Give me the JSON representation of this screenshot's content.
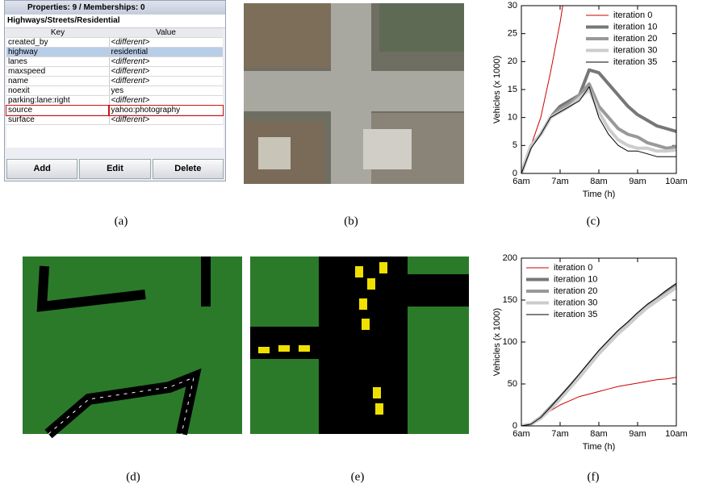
{
  "panel": {
    "title": "Properties: 9 / Memberships: 0",
    "path": "Highways/Streets/Residential",
    "columns": [
      "Key",
      "Value"
    ],
    "rows": [
      [
        "created_by",
        "<different>"
      ],
      [
        "highway",
        "residential"
      ],
      [
        "lanes",
        "<different>"
      ],
      [
        "maxspeed",
        "<different>"
      ],
      [
        "name",
        "<different>"
      ],
      [
        "noexit",
        "yes"
      ],
      [
        "parking:lane:right",
        "<different>"
      ],
      [
        "source",
        "yahoo:photography"
      ],
      [
        "surface",
        "<different>"
      ]
    ],
    "buttons": [
      "Add",
      "Edit",
      "Delete"
    ]
  },
  "captions": [
    "(a)",
    "(b)",
    "(c)",
    "(d)",
    "(e)",
    "(f)"
  ],
  "chart_data": [
    {
      "type": "line",
      "xlabel": "Time (h)",
      "ylabel": "Vehicles (x 1000)",
      "legend": "upper right",
      "x": [
        6,
        6.25,
        6.5,
        6.75,
        7,
        7.25,
        7.5,
        7.75,
        8,
        8.25,
        8.5,
        8.75,
        9,
        9.25,
        9.5,
        9.75,
        10
      ],
      "xlim": [
        6,
        10
      ],
      "xticks": [
        {
          "value": 6,
          "label": "6am"
        },
        {
          "value": 7,
          "label": "7am"
        },
        {
          "value": 8,
          "label": "8am"
        },
        {
          "value": 9,
          "label": "9am"
        },
        {
          "value": 10,
          "label": "10am"
        }
      ],
      "ylim": [
        0,
        30
      ],
      "yticks": [
        0,
        5,
        10,
        15,
        20,
        25,
        30
      ],
      "series": [
        {
          "name": "iteration 0",
          "color": "#cc0000",
          "width": 1,
          "values": [
            0,
            5,
            10,
            18,
            27,
            38,
            null,
            null,
            null,
            null,
            null,
            null,
            null,
            null,
            null,
            null,
            null
          ]
        },
        {
          "name": "iteration 10",
          "color": "#777777",
          "width": 4,
          "values": [
            0,
            5,
            7,
            10,
            12,
            13,
            14,
            18.5,
            18,
            16,
            14,
            12,
            10.5,
            9.5,
            8.5,
            8,
            7.5
          ]
        },
        {
          "name": "iteration 20",
          "color": "#999999",
          "width": 4,
          "values": [
            0,
            5,
            7,
            10,
            11.5,
            12.5,
            14,
            16,
            12,
            10,
            8,
            7,
            6.5,
            5.5,
            5,
            4.5,
            4.8
          ]
        },
        {
          "name": "iteration 30",
          "color": "#cccccc",
          "width": 4,
          "values": [
            0,
            5,
            7,
            10,
            11,
            12,
            13.5,
            15,
            11,
            8,
            6,
            5,
            4.5,
            4.5,
            4,
            4,
            4.2
          ]
        },
        {
          "name": "iteration 35",
          "color": "#000000",
          "width": 1,
          "values": [
            0,
            4.5,
            7,
            10,
            11,
            12,
            13,
            15.5,
            10,
            7,
            5,
            4,
            4,
            3.5,
            3,
            3,
            3
          ]
        }
      ]
    },
    {
      "type": "line",
      "xlabel": "Time (h)",
      "ylabel": "Vehicles (x 1000)",
      "legend": "upper left",
      "x": [
        6,
        6.25,
        6.5,
        6.75,
        7,
        7.25,
        7.5,
        7.75,
        8,
        8.25,
        8.5,
        8.75,
        9,
        9.25,
        9.5,
        9.75,
        10
      ],
      "xlim": [
        6,
        10
      ],
      "xticks": [
        {
          "value": 6,
          "label": "6am"
        },
        {
          "value": 7,
          "label": "7am"
        },
        {
          "value": 8,
          "label": "8am"
        },
        {
          "value": 9,
          "label": "9am"
        },
        {
          "value": 10,
          "label": "10am"
        }
      ],
      "ylim": [
        0,
        200
      ],
      "yticks": [
        0,
        50,
        100,
        150,
        200
      ],
      "series": [
        {
          "name": "iteration 0",
          "color": "#cc0000",
          "width": 1,
          "values": [
            0,
            3,
            10,
            18,
            25,
            30,
            35,
            38,
            41,
            44,
            47,
            49,
            51,
            53,
            55,
            56,
            58
          ]
        },
        {
          "name": "iteration 10",
          "color": "#777777",
          "width": 4,
          "values": [
            0,
            2,
            10,
            22,
            34,
            47,
            60,
            74,
            88,
            100,
            112,
            122,
            133,
            143,
            151,
            160,
            168
          ]
        },
        {
          "name": "iteration 20",
          "color": "#999999",
          "width": 4,
          "values": [
            0,
            2,
            10,
            21,
            33,
            46,
            59,
            73,
            87,
            99,
            111,
            121,
            132,
            142,
            150,
            158,
            166
          ]
        },
        {
          "name": "iteration 30",
          "color": "#cccccc",
          "width": 4,
          "values": [
            0,
            2,
            9,
            20,
            32,
            45,
            58,
            72,
            86,
            98,
            110,
            120,
            131,
            141,
            149,
            157,
            165
          ]
        },
        {
          "name": "iteration 35",
          "color": "#000000",
          "width": 1,
          "values": [
            0,
            2,
            10,
            22,
            35,
            48,
            62,
            76,
            90,
            102,
            114,
            124,
            135,
            145,
            153,
            162,
            170
          ]
        }
      ]
    }
  ]
}
